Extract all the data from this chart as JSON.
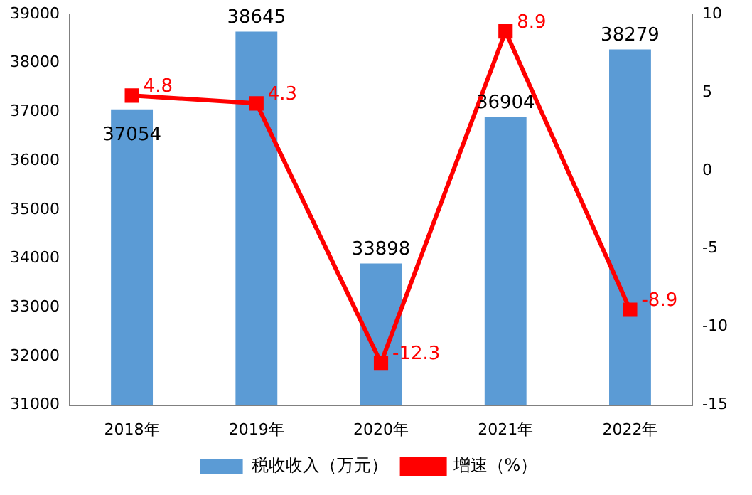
{
  "chart_data": {
    "type": "bar",
    "categories": [
      "2018年",
      "2019年",
      "2020年",
      "2021年",
      "2022年"
    ],
    "series": [
      {
        "name": "税收收入（万元）",
        "color": "#5b9bd5",
        "values": [
          37054,
          38645,
          33898,
          36904,
          38279
        ]
      },
      {
        "name": "增速（%）",
        "type": "line",
        "axis": "y2",
        "color": "#ff0000",
        "values": [
          4.8,
          4.3,
          -12.3,
          8.9,
          -8.9
        ]
      }
    ],
    "ylim": [
      31000,
      39000
    ],
    "yticks": [
      31000,
      32000,
      33000,
      34000,
      35000,
      36000,
      37000,
      38000,
      39000
    ],
    "y2lim": [
      -15,
      10
    ],
    "y2ticks": [
      -15,
      -10,
      -5,
      0,
      5,
      10
    ],
    "grid": false,
    "legend": "bottom",
    "marker": "square",
    "line_style": "solid",
    "data_labels": true
  }
}
